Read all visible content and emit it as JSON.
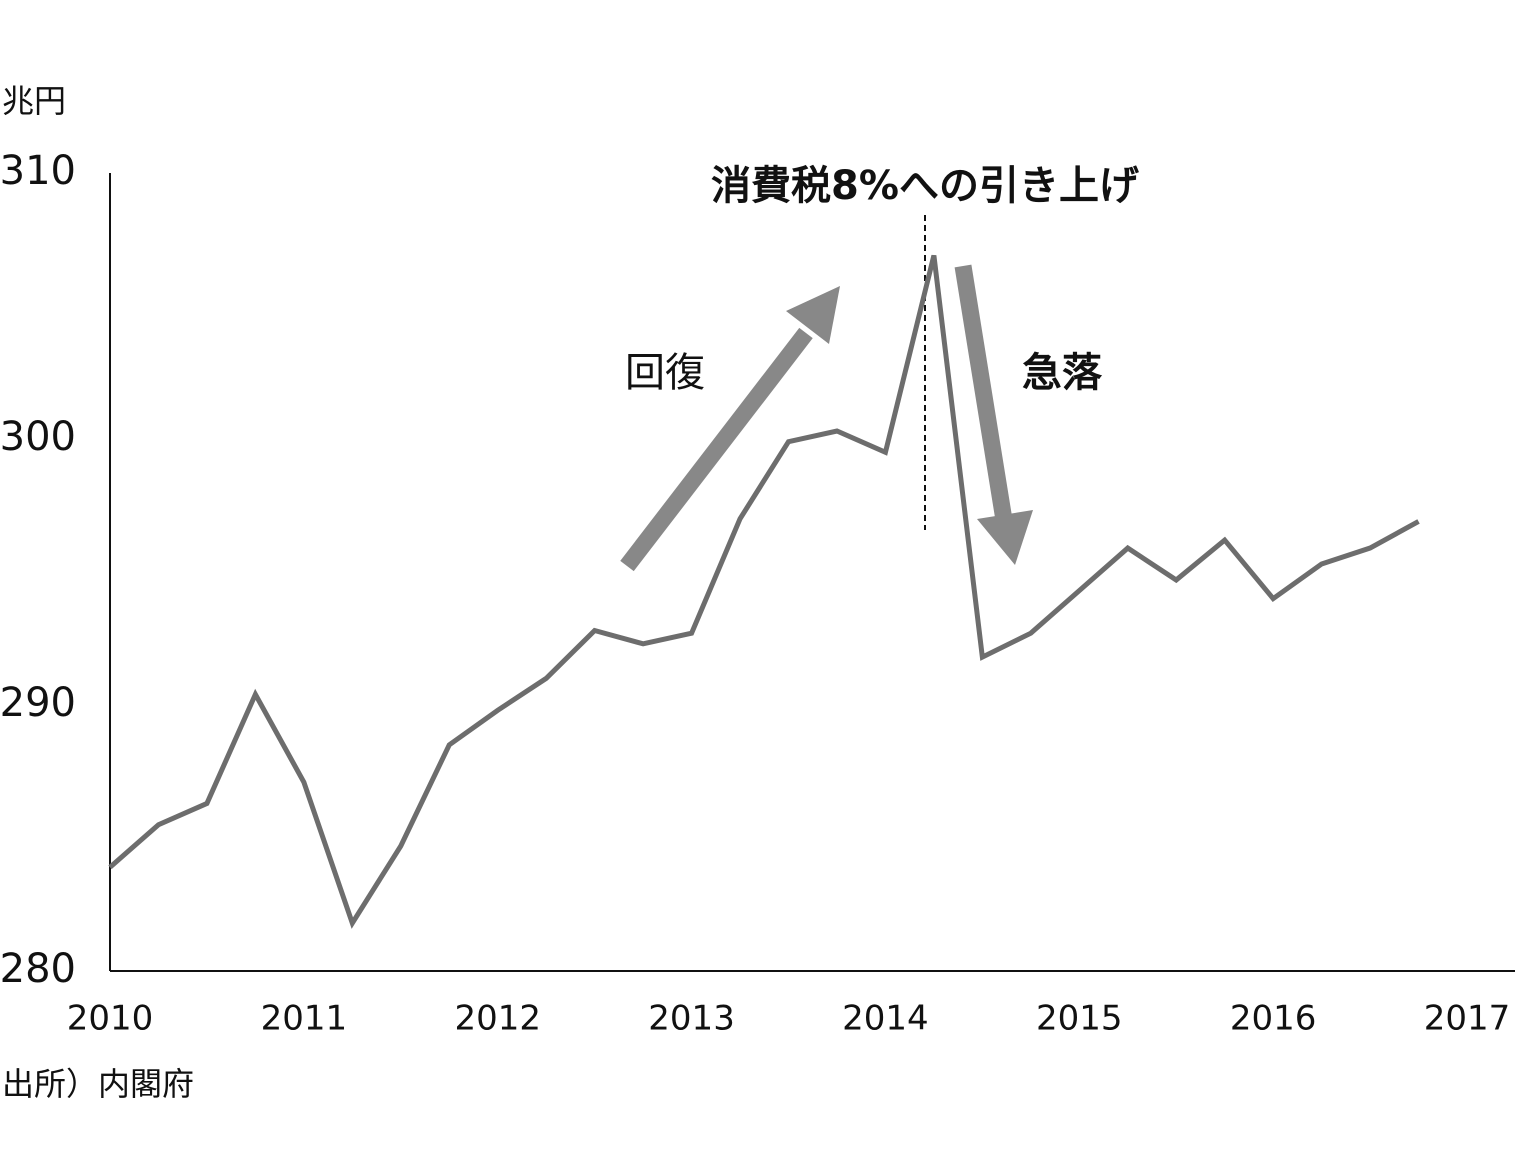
{
  "chart_data": {
    "type": "line",
    "y_unit_label": "兆円",
    "annotation": "消費税8%への引き上げ",
    "annotation_up": "回復",
    "annotation_down": "急落",
    "source": "出所）内閣府",
    "x": [
      2010,
      2010.25,
      2010.5,
      2010.75,
      2011,
      2011.25,
      2011.5,
      2011.75,
      2012,
      2012.25,
      2012.5,
      2012.75,
      2013,
      2013.25,
      2013.5,
      2013.75,
      2014,
      2014.25,
      2014.5,
      2014.75,
      2015,
      2015.25,
      2015.5,
      2015.75,
      2016,
      2016.25,
      2016.5,
      2016.75
    ],
    "series": [
      {
        "color": "#6d6d6d",
        "values": [
          283.9,
          285.5,
          286.3,
          290.4,
          287.1,
          281.8,
          284.7,
          288.5,
          289.8,
          291.0,
          292.8,
          292.3,
          292.7,
          297.0,
          299.9,
          300.3,
          299.5,
          306.9,
          291.8,
          292.7,
          294.3,
          295.9,
          294.7,
          296.2,
          294.0,
          295.3,
          295.9,
          296.9
        ]
      }
    ],
    "xlim": [
      2010,
      2017
    ],
    "xticks": [
      2010,
      2011,
      2012,
      2013,
      2014,
      2015,
      2016,
      2017
    ],
    "ylim": [
      280,
      310
    ],
    "yticks": [
      280,
      290,
      300,
      310
    ],
    "grid": false
  }
}
